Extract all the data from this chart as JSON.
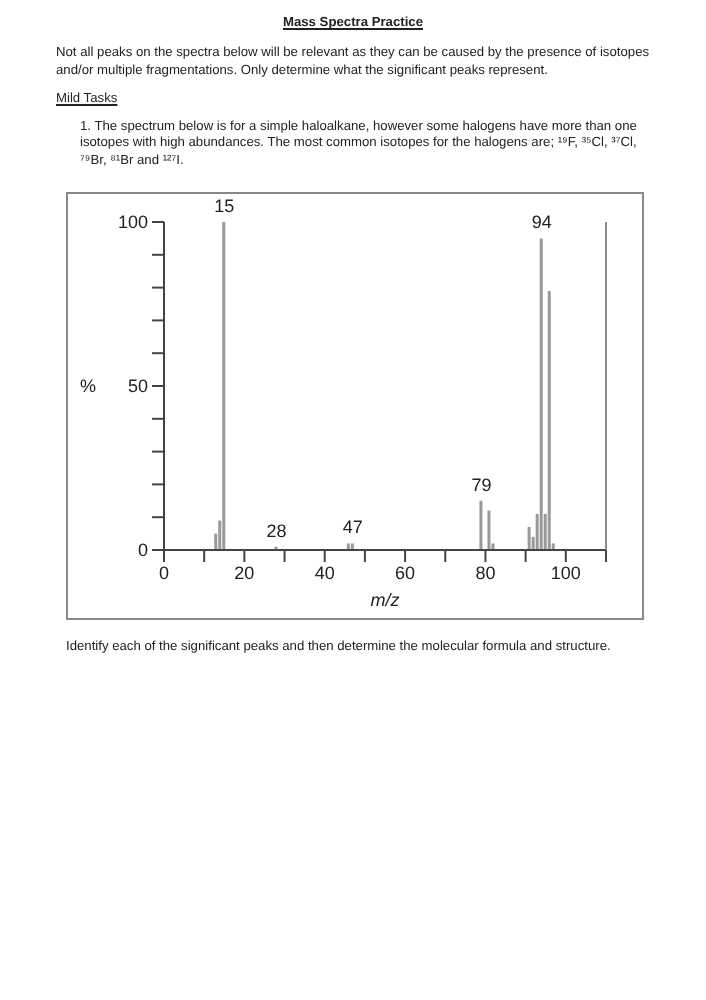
{
  "chart_data": {
    "type": "bar",
    "title": "Mass Spectra Practice",
    "subtitle": "Not all peaks on the spectra below will be relevant as they can be caused by the presence of isotopes and/or multiple fragmentations. Only determine what the significant peaks represent.",
    "annotations": [
      "Mild Tasks",
      "1. The spectrum below is for a simple haloalkane, however some halogens have more than one isotopes with high abundances. The most common isotopes for the halogens are; ¹⁹F, ³⁵Cl, ³⁷Cl, ⁷⁹Br, ⁸¹Br and ¹²⁷I.",
      {
        "text": "15",
        "x": 15,
        "y": 100
      },
      {
        "text": "28",
        "x": 28,
        "y": 1
      },
      {
        "text": "47",
        "x": 47,
        "y": 2
      },
      {
        "text": "79",
        "x": 79,
        "y": 15
      },
      {
        "text": "94",
        "x": 94,
        "y": 95
      },
      "Identify each of the significant peaks and then determine the molecular formula and structure."
    ],
    "x": [
      13,
      14,
      15,
      28,
      46,
      47,
      79,
      81,
      82,
      91,
      92,
      93,
      94,
      95,
      96,
      97
    ],
    "values": [
      5,
      9,
      100,
      1,
      2,
      2,
      15,
      12,
      2,
      7,
      4,
      11,
      95,
      11,
      79,
      2
    ],
    "color": "#999999",
    "xlabel": "m/z",
    "ylabel": "%",
    "xlim": [
      0,
      110
    ],
    "xticks": [
      0,
      {
        "value": 10,
        "label": null
      },
      20,
      {
        "value": 30,
        "label": null
      },
      40,
      {
        "value": 50,
        "label": null
      },
      60,
      {
        "value": 70,
        "label": null
      },
      80,
      {
        "value": 90,
        "label": null
      },
      100,
      {
        "value": 110,
        "label": null
      }
    ],
    "ylim": [
      0,
      100
    ],
    "yticks": [
      0,
      {
        "value": 10,
        "label": null
      },
      {
        "value": 20,
        "label": null
      },
      {
        "value": 30,
        "label": null
      },
      {
        "value": 40,
        "label": null
      },
      50,
      {
        "value": 60,
        "label": null
      },
      {
        "value": 70,
        "label": null
      },
      {
        "value": 80,
        "label": null
      },
      {
        "value": 90,
        "label": null
      },
      100
    ]
  }
}
